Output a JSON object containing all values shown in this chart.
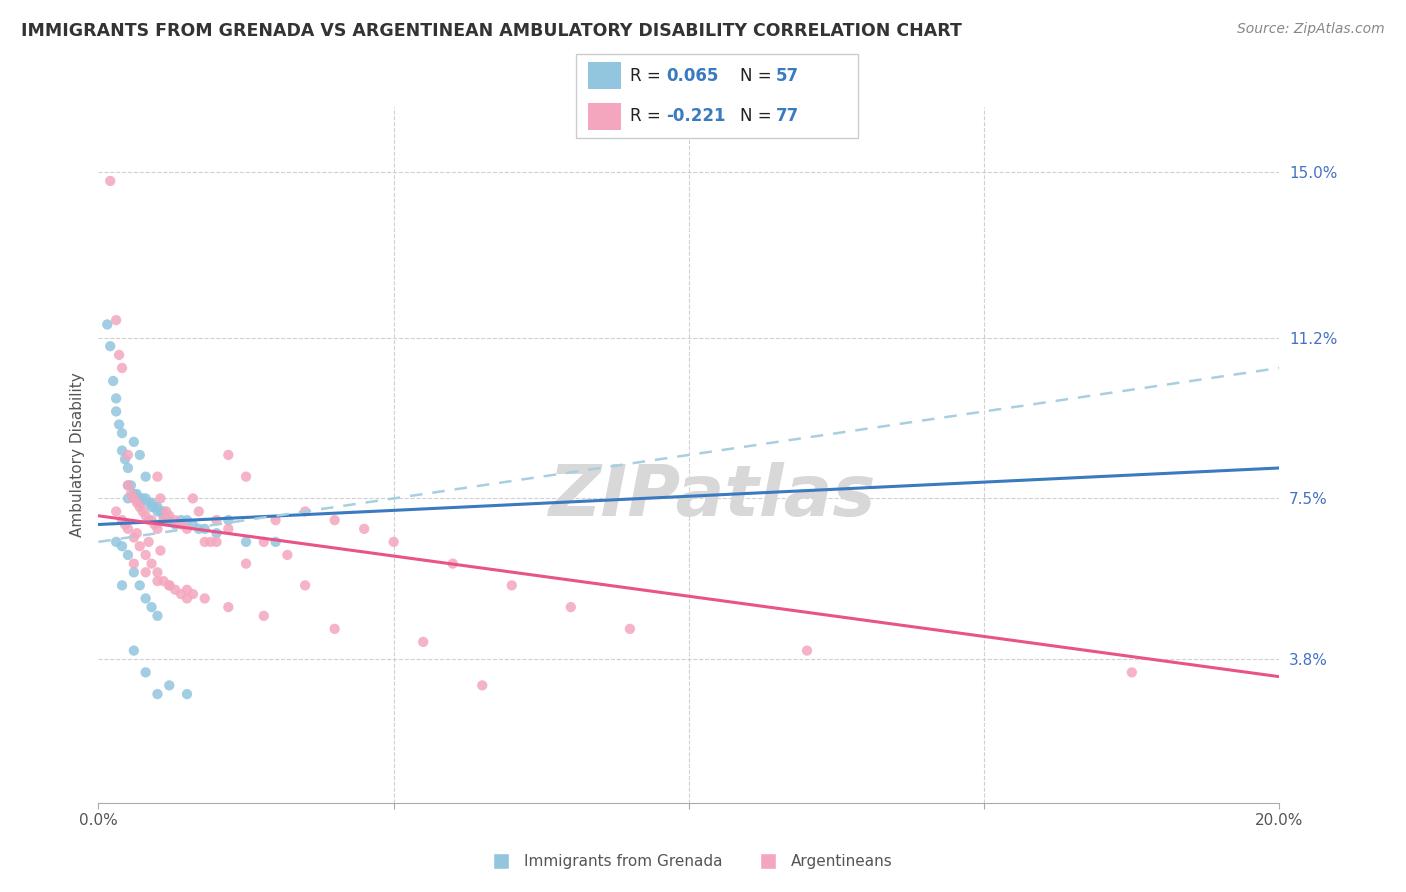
{
  "title": "IMMIGRANTS FROM GRENADA VS ARGENTINEAN AMBULATORY DISABILITY CORRELATION CHART",
  "source": "Source: ZipAtlas.com",
  "ylabel": "Ambulatory Disability",
  "ytick_values": [
    3.8,
    7.5,
    11.2,
    15.0
  ],
  "xlim": [
    0.0,
    20.0
  ],
  "ylim": [
    0.5,
    16.5
  ],
  "legend_label_blue": "Immigrants from Grenada",
  "legend_label_pink": "Argentineans",
  "color_blue": "#92c5de",
  "color_pink": "#f4a6be",
  "color_blue_line": "#3a7abf",
  "color_pink_line": "#e8538a",
  "color_blue_dashed": "#a8cfe0",
  "watermark": "ZIPatlas",
  "blue_scatter_x": [
    0.15,
    0.2,
    0.25,
    0.3,
    0.3,
    0.35,
    0.4,
    0.4,
    0.45,
    0.5,
    0.5,
    0.55,
    0.6,
    0.6,
    0.65,
    0.7,
    0.7,
    0.75,
    0.8,
    0.8,
    0.85,
    0.9,
    0.9,
    0.95,
    1.0,
    1.0,
    1.05,
    1.1,
    1.15,
    1.2,
    1.3,
    1.4,
    1.5,
    1.6,
    1.7,
    1.8,
    2.0,
    2.2,
    2.5,
    3.0,
    0.3,
    0.4,
    0.5,
    0.6,
    0.7,
    0.8,
    0.9,
    1.0,
    1.2,
    0.4,
    0.6,
    0.8,
    1.0,
    1.5,
    0.5,
    0.7,
    1.1
  ],
  "blue_scatter_y": [
    11.5,
    11.0,
    10.2,
    9.8,
    9.5,
    9.2,
    9.0,
    8.6,
    8.4,
    8.2,
    7.8,
    7.8,
    8.8,
    7.6,
    7.6,
    7.5,
    8.5,
    7.5,
    7.5,
    8.0,
    7.4,
    7.4,
    7.3,
    7.3,
    7.3,
    7.2,
    7.2,
    7.1,
    7.0,
    7.0,
    6.9,
    7.0,
    7.0,
    6.9,
    6.8,
    6.8,
    6.7,
    7.0,
    6.5,
    6.5,
    6.5,
    6.4,
    6.2,
    5.8,
    5.5,
    5.2,
    5.0,
    4.8,
    3.2,
    5.5,
    4.0,
    3.5,
    3.0,
    3.0,
    7.5,
    7.4,
    7.2
  ],
  "pink_scatter_x": [
    0.2,
    0.3,
    0.35,
    0.4,
    0.5,
    0.5,
    0.55,
    0.6,
    0.65,
    0.7,
    0.75,
    0.8,
    0.85,
    0.9,
    0.95,
    1.0,
    1.0,
    1.05,
    1.1,
    1.15,
    1.2,
    1.3,
    1.4,
    1.5,
    1.6,
    1.7,
    1.8,
    1.9,
    2.0,
    2.2,
    2.5,
    3.0,
    3.5,
    4.0,
    4.5,
    5.0,
    6.0,
    7.0,
    8.0,
    9.0,
    12.0,
    17.5,
    0.3,
    0.4,
    0.5,
    0.6,
    0.7,
    0.8,
    0.9,
    1.0,
    1.1,
    1.2,
    1.3,
    1.4,
    1.5,
    0.6,
    0.8,
    1.0,
    1.2,
    1.5,
    2.0,
    2.5,
    3.5,
    2.2,
    2.8,
    3.2,
    1.6,
    1.8,
    2.2,
    2.8,
    4.0,
    5.5,
    6.5,
    0.45,
    0.65,
    0.85,
    1.05
  ],
  "pink_scatter_y": [
    14.8,
    11.6,
    10.8,
    10.5,
    8.5,
    7.8,
    7.6,
    7.5,
    7.4,
    7.3,
    7.2,
    7.1,
    7.0,
    7.0,
    6.9,
    6.8,
    8.0,
    7.5,
    7.0,
    7.2,
    7.1,
    7.0,
    6.9,
    6.8,
    7.5,
    7.2,
    6.5,
    6.5,
    7.0,
    8.5,
    8.0,
    7.0,
    7.2,
    7.0,
    6.8,
    6.5,
    6.0,
    5.5,
    5.0,
    4.5,
    4.0,
    3.5,
    7.2,
    7.0,
    6.8,
    6.6,
    6.4,
    6.2,
    6.0,
    5.8,
    5.6,
    5.5,
    5.4,
    5.3,
    5.2,
    6.0,
    5.8,
    5.6,
    5.5,
    5.4,
    6.5,
    6.0,
    5.5,
    6.8,
    6.5,
    6.2,
    5.3,
    5.2,
    5.0,
    4.8,
    4.5,
    4.2,
    3.2,
    6.9,
    6.7,
    6.5,
    6.3
  ],
  "blue_line_x": [
    0.0,
    20.0
  ],
  "blue_line_y": [
    6.9,
    8.2
  ],
  "pink_line_x": [
    0.0,
    20.0
  ],
  "pink_line_y": [
    7.1,
    3.4
  ],
  "blue_dashed_line_y": [
    6.5,
    10.5
  ]
}
